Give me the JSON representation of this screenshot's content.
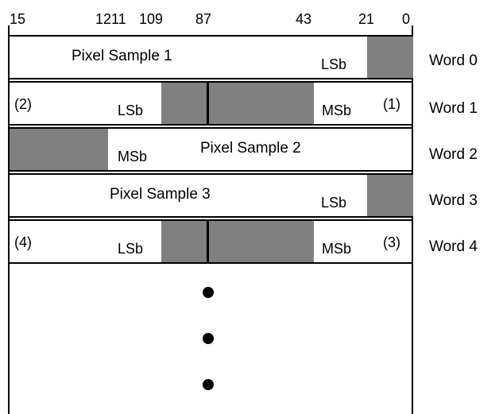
{
  "bit_labels": {
    "b15": "15",
    "b12_11": "1211",
    "b10_9": "109",
    "b8_7": "87",
    "b4_3": "43",
    "b2_1": "21",
    "b0": "0"
  },
  "words": [
    {
      "label": "Word 0",
      "main_text": "Pixel Sample 1",
      "lsb": "LSb"
    },
    {
      "label": "Word 1",
      "left_note": "(2)",
      "lsb": "LSb",
      "msb": "MSb",
      "right_note": "(1)"
    },
    {
      "label": "Word 2",
      "msb": "MSb",
      "main_text": "Pixel Sample 2"
    },
    {
      "label": "Word 3",
      "main_text": "Pixel Sample 3",
      "lsb": "LSb"
    },
    {
      "label": "Word 4",
      "left_note": "(4)",
      "lsb": "LSb",
      "msb": "MSb",
      "right_note": "(3)"
    }
  ],
  "colors": {
    "shade": "#808080",
    "line": "#000000"
  }
}
